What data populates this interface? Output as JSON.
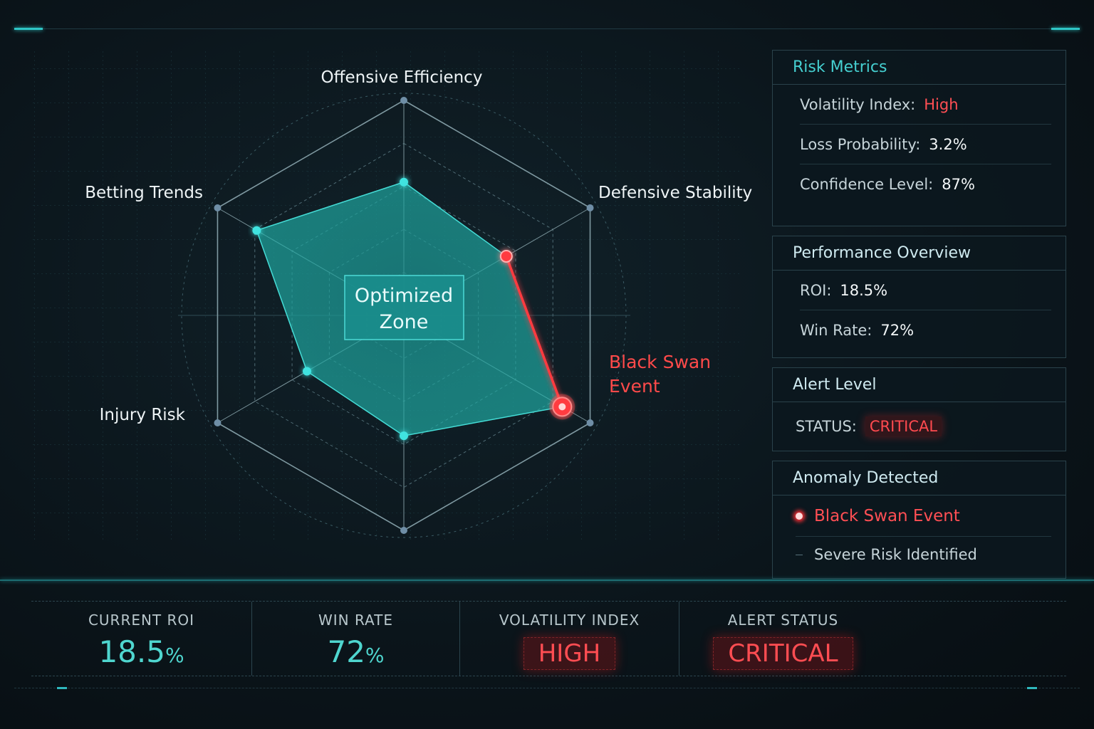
{
  "radar": {
    "axes": [
      "Offensive Efficiency",
      "Defensive Stability",
      "Black Swan Event",
      "",
      "Injury Risk",
      "Betting Trends"
    ],
    "axis_labels": {
      "top": "Offensive Efficiency",
      "top_right": "Defensive Stability",
      "top_left": "Betting Trends",
      "bottom_left": "Injury Risk"
    },
    "center_badge": {
      "line1": "Optimized",
      "line2": "Zone"
    },
    "anomaly_label": {
      "line1": "Black Swan",
      "line2": "Event"
    },
    "polygon_levels": [
      0.62,
      0.55,
      0.85,
      0.56,
      0.52,
      0.79
    ],
    "colors": {
      "fill": "#1fa9a3",
      "point": "#3fe3e0",
      "anomaly": "#ff3b3f",
      "grid": "#c5d8dc"
    }
  },
  "risk_metrics": {
    "title": "Risk Metrics",
    "volatility_label": "Volatility Index:",
    "volatility_value": "High",
    "loss_label": "Loss Probability:",
    "loss_value": "3.2%",
    "confidence_label": "Confidence Level:",
    "confidence_value": "87%"
  },
  "performance": {
    "title": "Performance Overview",
    "roi_label": "ROI:",
    "roi_value": "18.5%",
    "win_label": "Win Rate:",
    "win_value": "72%"
  },
  "alert": {
    "title": "Alert Level",
    "status_label": "STATUS:",
    "status_value": "CRITICAL"
  },
  "anomaly": {
    "title": "Anomaly Detected",
    "event": "Black Swan Event",
    "detail": "Severe Risk Identified"
  },
  "stats": {
    "roi_label": "CURRENT ROI",
    "roi_value": "18.5",
    "roi_unit": "%",
    "win_label": "WIN RATE",
    "win_value": "72",
    "win_unit": "%",
    "vol_label": "VOLATILITY INDEX",
    "vol_value": "HIGH",
    "alert_label": "ALERT STATUS",
    "alert_value": "CRITICAL"
  }
}
